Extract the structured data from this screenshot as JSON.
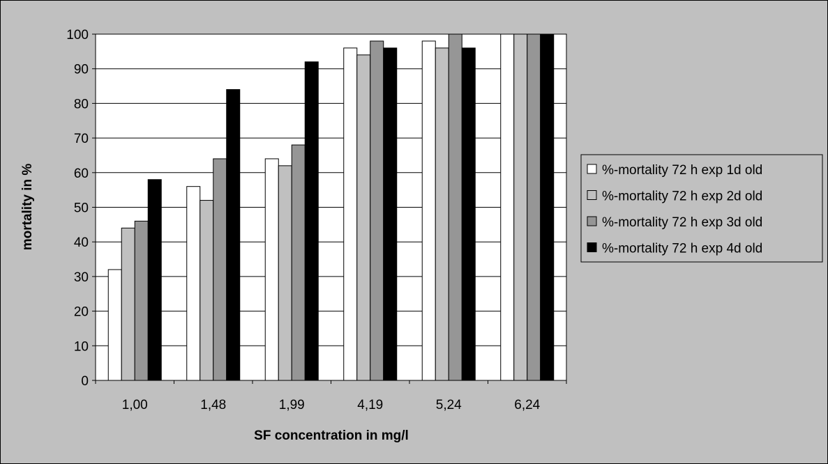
{
  "chart_data": {
    "type": "bar",
    "xlabel": "SF concentration in mg/l",
    "ylabel": "mortality in %",
    "ylim": [
      0,
      100
    ],
    "yticks": [
      0,
      10,
      20,
      30,
      40,
      50,
      60,
      70,
      80,
      90,
      100
    ],
    "grid": true,
    "legend_position": "right",
    "categories": [
      "1,00",
      "1,48",
      "1,99",
      "4,19",
      "5,24",
      "6,24"
    ],
    "series": [
      {
        "name": "%-mortality 72 h exp 1d old",
        "color": "#ffffff",
        "values": [
          32,
          56,
          64,
          96,
          98,
          100
        ]
      },
      {
        "name": "%-mortality 72 h exp 2d old",
        "color": "#c0c0c0",
        "values": [
          44,
          52,
          62,
          94,
          96,
          100
        ]
      },
      {
        "name": "%-mortality 72 h exp 3d old",
        "color": "#969696",
        "values": [
          46,
          64,
          68,
          98,
          100,
          100
        ]
      },
      {
        "name": "%-mortality 72 h exp 4d old",
        "color": "#000000",
        "values": [
          58,
          84,
          92,
          96,
          96,
          100
        ]
      }
    ]
  }
}
